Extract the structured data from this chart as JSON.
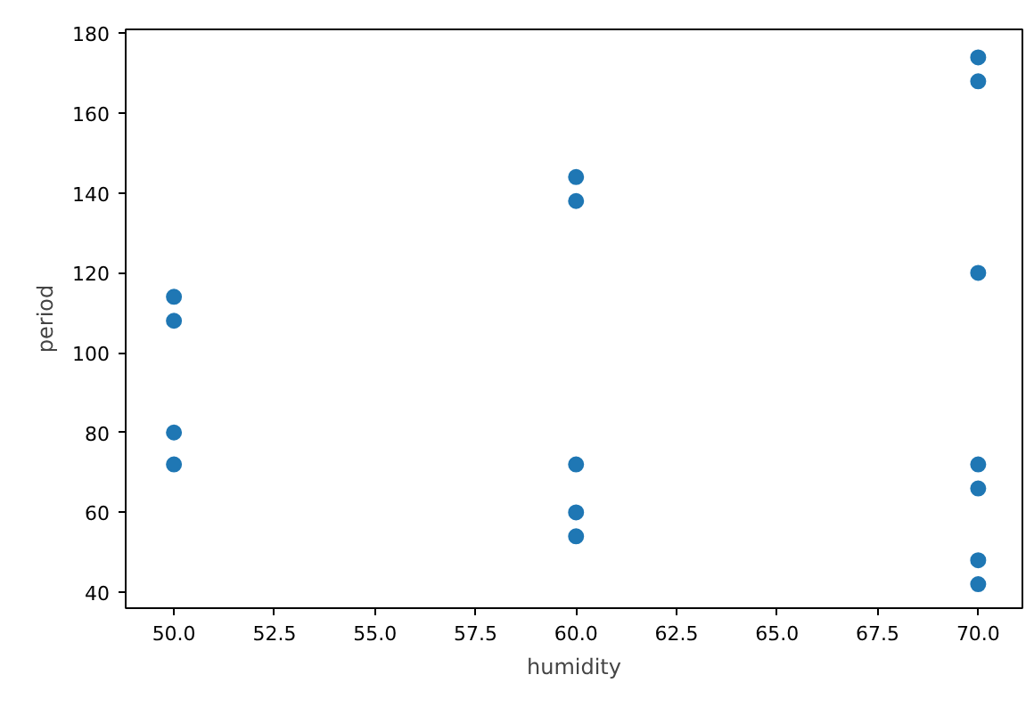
{
  "chart_data": {
    "type": "scatter",
    "xlabel": "humidity",
    "ylabel": "period",
    "x": [
      50,
      50,
      50,
      50,
      60,
      60,
      60,
      60,
      60,
      70,
      70,
      70,
      70,
      70,
      70,
      70
    ],
    "values": [
      114,
      108,
      80,
      72,
      144,
      138,
      72,
      60,
      54,
      174,
      168,
      120,
      72,
      66,
      48,
      42
    ],
    "color": "#1f77b4",
    "marker": "circle",
    "grid": false,
    "xlim": [
      48.8,
      71.1
    ],
    "ylim": [
      36,
      181
    ],
    "xticks": [
      {
        "value": 50,
        "label": "50.0"
      },
      {
        "value": 52.5,
        "label": "52.5"
      },
      {
        "value": 55,
        "label": "55.0"
      },
      {
        "value": 57.5,
        "label": "57.5"
      },
      {
        "value": 60,
        "label": "60.0"
      },
      {
        "value": 62.5,
        "label": "62.5"
      },
      {
        "value": 65,
        "label": "65.0"
      },
      {
        "value": 67.5,
        "label": "67.5"
      },
      {
        "value": 70,
        "label": "70.0"
      }
    ],
    "yticks": [
      40,
      60,
      80,
      100,
      120,
      140,
      160,
      180
    ]
  }
}
